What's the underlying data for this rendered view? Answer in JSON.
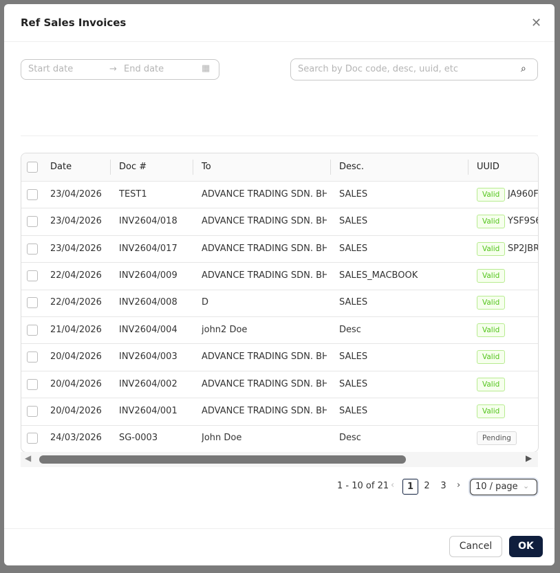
{
  "modal": {
    "title": "Ref Sales Invoices",
    "start_date_placeholder": "Start date",
    "end_date_placeholder": "End date",
    "search_placeholder": "Search by Doc code, desc, uuid, etc"
  },
  "table": {
    "columns": [
      "Date",
      "Doc #",
      "To",
      "Desc.",
      "UUID"
    ],
    "rows": [
      [
        "23/04/2026",
        "TEST1",
        "ADVANCE TRADING SDN. BH…",
        "SALES",
        "Valid",
        "JA960F"
      ],
      [
        "23/04/2026",
        "INV2604/018",
        "ADVANCE TRADING SDN. BH…",
        "SALES",
        "Valid",
        "YSF9S6"
      ],
      [
        "23/04/2026",
        "INV2604/017",
        "ADVANCE TRADING SDN. BH…",
        "SALES",
        "Valid",
        "SP2JBR"
      ],
      [
        "22/04/2026",
        "INV2604/009",
        "ADVANCE TRADING SDN. BH…",
        "SALES_MACBOOK",
        "Valid",
        ""
      ],
      [
        "22/04/2026",
        "INV2604/008",
        "D",
        "SALES",
        "Valid",
        ""
      ],
      [
        "21/04/2026",
        "INV2604/004",
        "john2 Doe",
        "Desc",
        "Valid",
        ""
      ],
      [
        "20/04/2026",
        "INV2604/003",
        "ADVANCE TRADING SDN. BH…",
        "SALES",
        "Valid",
        ""
      ],
      [
        "20/04/2026",
        "INV2604/002",
        "ADVANCE TRADING SDN. BH…",
        "SALES",
        "Valid",
        ""
      ],
      [
        "20/04/2026",
        "INV2604/001",
        "ADVANCE TRADING SDN. BH…",
        "SALES",
        "Valid",
        ""
      ],
      [
        "24/03/2026",
        "SG-0003",
        "John Doe",
        "Desc",
        "Pending",
        ""
      ]
    ]
  },
  "pagination": {
    "summary": "1 - 10 of 21",
    "pages": [
      "1",
      "2",
      "3"
    ],
    "page_size": "10 / page"
  },
  "footer": {
    "cancel": "Cancel",
    "ok": "OK"
  }
}
